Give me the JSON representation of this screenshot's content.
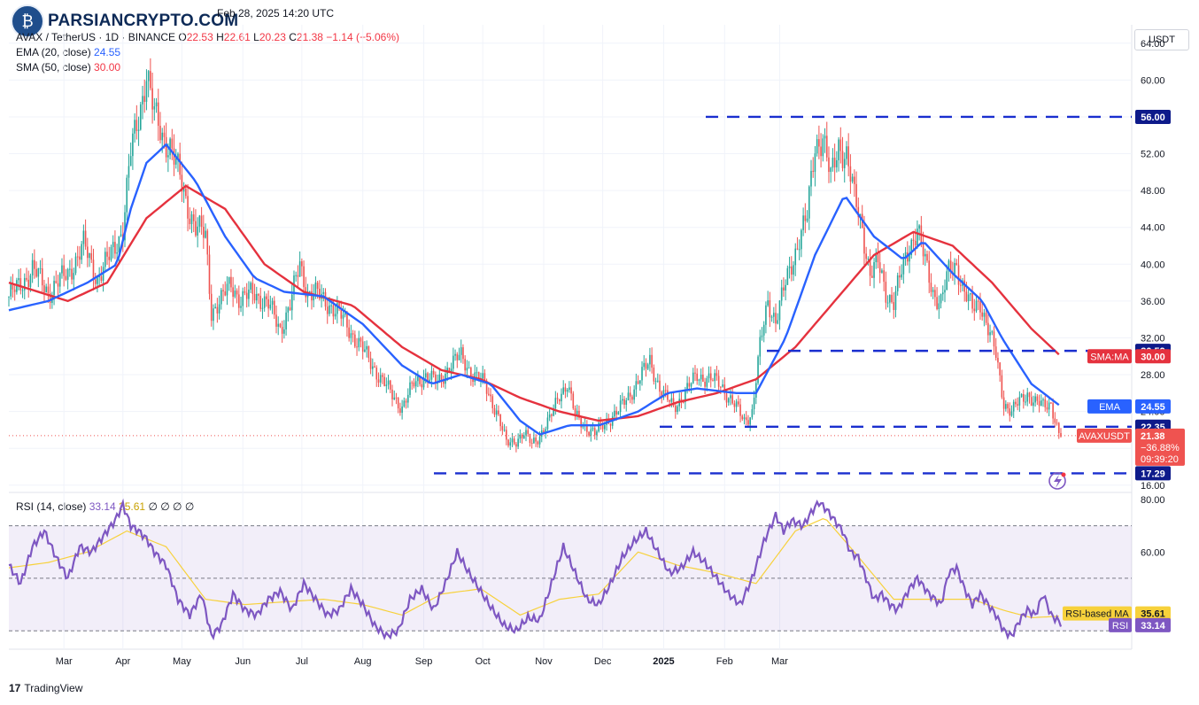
{
  "header": {
    "meta": "Feb 28, 2025 14:20 UTC",
    "symbol": "AVAX / TetherUS · 1D · BINANCE",
    "o_label": "O",
    "o": "22.53",
    "h_label": "H",
    "h": "22.61",
    "l_label": "L",
    "l": "20.23",
    "c_label": "C",
    "c": "21.38",
    "change": "−1.14 (−5.06%)",
    "ema_label": "EMA (20, close)",
    "ema_value": "24.55",
    "sma_label": "SMA (50, close)",
    "sma_value": "30.00",
    "rsi_label": "RSI (14, close)",
    "rsi_value": "33.14",
    "rsi_ma_value": "35.61",
    "rsi_extra": "∅ ∅ ∅ ∅"
  },
  "watermark": "PARSIANCRYPTO.COM",
  "currency": "USDT",
  "tradingview": "TradingView",
  "colors": {
    "up": "#26a69a",
    "down": "#ef5350",
    "ema": "#2962ff",
    "sma": "#e5323e",
    "rsi": "#7e57c2",
    "rsi_ma": "#f7d13b",
    "level": "#1a2fcf"
  },
  "chart_data": [
    {
      "type": "candlestick",
      "x_tick_labels": [
        "Mar",
        "Apr",
        "May",
        "Jun",
        "Jul",
        "Aug",
        "Sep",
        "Oct",
        "Nov",
        "Dec",
        "2025",
        "Feb",
        "Mar"
      ],
      "y_tick_labels": [
        "64.00",
        "60.00",
        "56.00",
        "52.00",
        "48.00",
        "44.00",
        "40.00",
        "36.00",
        "32.00",
        "28.00",
        "24.00",
        "20.00",
        "16.00"
      ],
      "ylim": [
        15.5,
        66
      ],
      "last_price_tag": {
        "symbol": "AVAXUSDT",
        "price": "21.38",
        "change": "−36.88%",
        "countdown": "09:39:20"
      },
      "indicator_tags": [
        {
          "name": "EMA",
          "value": "24.55"
        },
        {
          "name": "SMA:MA",
          "value": "30.00"
        }
      ],
      "levels": [
        {
          "price": 56.0,
          "label": "56.00"
        },
        {
          "price": 30.59,
          "label": "30.59"
        },
        {
          "price": 22.35,
          "label": "22.35"
        },
        {
          "price": 17.29,
          "label": "17.29"
        }
      ],
      "close_approx": [
        [
          0,
          36.5
        ],
        [
          5,
          37.5
        ],
        [
          12,
          39.5
        ],
        [
          20,
          37
        ],
        [
          30,
          39
        ],
        [
          38,
          42
        ],
        [
          45,
          38.5
        ],
        [
          52,
          41
        ],
        [
          58,
          44
        ],
        [
          62,
          52
        ],
        [
          66,
          56
        ],
        [
          70,
          61
        ],
        [
          74,
          56
        ],
        [
          78,
          54
        ],
        [
          82,
          53
        ],
        [
          86,
          50
        ],
        [
          90,
          47
        ],
        [
          95,
          44
        ],
        [
          100,
          43
        ],
        [
          103,
          35
        ],
        [
          108,
          36
        ],
        [
          113,
          38
        ],
        [
          118,
          36
        ],
        [
          125,
          37
        ],
        [
          132,
          35.5
        ],
        [
          138,
          33
        ],
        [
          143,
          35.5
        ],
        [
          148,
          40
        ],
        [
          152,
          37
        ],
        [
          158,
          36.5
        ],
        [
          164,
          35.5
        ],
        [
          170,
          34
        ],
        [
          176,
          32
        ],
        [
          182,
          30
        ],
        [
          188,
          28
        ],
        [
          194,
          26
        ],
        [
          200,
          24.5
        ],
        [
          206,
          27
        ],
        [
          212,
          28
        ],
        [
          218,
          27
        ],
        [
          224,
          29
        ],
        [
          230,
          30
        ],
        [
          236,
          28
        ],
        [
          242,
          27
        ],
        [
          248,
          24
        ],
        [
          253,
          20.5
        ],
        [
          258,
          21
        ],
        [
          262,
          21.5
        ],
        [
          266,
          20.5
        ],
        [
          270,
          21.5
        ],
        [
          275,
          23
        ],
        [
          280,
          26
        ],
        [
          284,
          27
        ],
        [
          288,
          23.5
        ],
        [
          293,
          22.5
        ],
        [
          298,
          21.5
        ],
        [
          304,
          23
        ],
        [
          310,
          24
        ],
        [
          316,
          26
        ],
        [
          322,
          28
        ],
        [
          326,
          29.5
        ],
        [
          332,
          26
        ],
        [
          338,
          24.5
        ],
        [
          344,
          26
        ],
        [
          350,
          28
        ],
        [
          356,
          27.5
        ],
        [
          362,
          27
        ],
        [
          368,
          25
        ],
        [
          374,
          23
        ],
        [
          378,
          24
        ],
        [
          382,
          31
        ],
        [
          386,
          36
        ],
        [
          390,
          34
        ],
        [
          394,
          37
        ],
        [
          398,
          40
        ],
        [
          402,
          43
        ],
        [
          406,
          45
        ],
        [
          410,
          53
        ],
        [
          414,
          54
        ],
        [
          418,
          49
        ],
        [
          422,
          53
        ],
        [
          426,
          52
        ],
        [
          430,
          47
        ],
        [
          434,
          44
        ],
        [
          438,
          39
        ],
        [
          442,
          40
        ],
        [
          446,
          37
        ],
        [
          450,
          36
        ],
        [
          454,
          39
        ],
        [
          458,
          42
        ],
        [
          462,
          44
        ],
        [
          466,
          40
        ],
        [
          470,
          37
        ],
        [
          474,
          36
        ],
        [
          478,
          39
        ],
        [
          482,
          40
        ],
        [
          486,
          37
        ],
        [
          490,
          35
        ],
        [
          494,
          36
        ],
        [
          498,
          33
        ],
        [
          502,
          30
        ],
        [
          506,
          25
        ],
        [
          510,
          24
        ],
        [
          514,
          25
        ],
        [
          518,
          26
        ],
        [
          522,
          25
        ],
        [
          526,
          24.5
        ],
        [
          530,
          25
        ],
        [
          534,
          21.5
        ]
      ],
      "ema_approx": [
        [
          0,
          35
        ],
        [
          20,
          36
        ],
        [
          40,
          38
        ],
        [
          55,
          40
        ],
        [
          62,
          46
        ],
        [
          70,
          51
        ],
        [
          80,
          53
        ],
        [
          95,
          49
        ],
        [
          110,
          43
        ],
        [
          125,
          38.5
        ],
        [
          140,
          37
        ],
        [
          160,
          36.5
        ],
        [
          180,
          33.5
        ],
        [
          200,
          29
        ],
        [
          215,
          27
        ],
        [
          230,
          28
        ],
        [
          245,
          27
        ],
        [
          260,
          23
        ],
        [
          270,
          21.5
        ],
        [
          285,
          22.5
        ],
        [
          300,
          22.5
        ],
        [
          320,
          24
        ],
        [
          335,
          26
        ],
        [
          350,
          26.5
        ],
        [
          370,
          26
        ],
        [
          380,
          26
        ],
        [
          395,
          32
        ],
        [
          410,
          41
        ],
        [
          425,
          47.5
        ],
        [
          440,
          43
        ],
        [
          455,
          40.5
        ],
        [
          465,
          42.5
        ],
        [
          480,
          39
        ],
        [
          495,
          36
        ],
        [
          505,
          32
        ],
        [
          520,
          27
        ],
        [
          535,
          24.55
        ]
      ],
      "sma_approx": [
        [
          0,
          38
        ],
        [
          30,
          36
        ],
        [
          50,
          38
        ],
        [
          70,
          45
        ],
        [
          90,
          48.5
        ],
        [
          110,
          46
        ],
        [
          130,
          40
        ],
        [
          150,
          37
        ],
        [
          175,
          35.5
        ],
        [
          200,
          31
        ],
        [
          220,
          28.5
        ],
        [
          240,
          27.5
        ],
        [
          260,
          25.5
        ],
        [
          280,
          24
        ],
        [
          300,
          23
        ],
        [
          320,
          23.5
        ],
        [
          340,
          25
        ],
        [
          360,
          26
        ],
        [
          380,
          27.5
        ],
        [
          400,
          31
        ],
        [
          420,
          36
        ],
        [
          440,
          41
        ],
        [
          460,
          43.5
        ],
        [
          480,
          42
        ],
        [
          500,
          38
        ],
        [
          520,
          33
        ],
        [
          535,
          30
        ]
      ]
    },
    {
      "type": "line",
      "name": "RSI",
      "y_tick_labels": [
        "80.00",
        "60.00"
      ],
      "ylim": [
        23,
        82
      ],
      "bands": [
        70,
        50,
        30
      ],
      "tags": [
        {
          "name": "RSI-based MA",
          "value": "35.61"
        },
        {
          "name": "RSI",
          "value": "33.14"
        }
      ],
      "rsi_approx": [
        [
          0,
          55
        ],
        [
          6,
          48
        ],
        [
          12,
          62
        ],
        [
          18,
          68
        ],
        [
          24,
          58
        ],
        [
          30,
          50
        ],
        [
          36,
          62
        ],
        [
          42,
          60
        ],
        [
          48,
          66
        ],
        [
          54,
          72
        ],
        [
          58,
          78
        ],
        [
          62,
          70
        ],
        [
          66,
          68
        ],
        [
          70,
          65
        ],
        [
          74,
          60
        ],
        [
          80,
          55
        ],
        [
          86,
          42
        ],
        [
          92,
          36
        ],
        [
          98,
          44
        ],
        [
          103,
          28
        ],
        [
          108,
          32
        ],
        [
          114,
          44
        ],
        [
          120,
          38
        ],
        [
          126,
          36
        ],
        [
          132,
          42
        ],
        [
          138,
          45
        ],
        [
          144,
          38
        ],
        [
          150,
          48
        ],
        [
          156,
          42
        ],
        [
          162,
          36
        ],
        [
          168,
          38
        ],
        [
          174,
          46
        ],
        [
          180,
          40
        ],
        [
          186,
          32
        ],
        [
          192,
          28
        ],
        [
          198,
          30
        ],
        [
          204,
          42
        ],
        [
          210,
          46
        ],
        [
          216,
          38
        ],
        [
          222,
          48
        ],
        [
          228,
          60
        ],
        [
          234,
          52
        ],
        [
          240,
          45
        ],
        [
          246,
          38
        ],
        [
          252,
          32
        ],
        [
          258,
          30
        ],
        [
          264,
          35
        ],
        [
          270,
          34
        ],
        [
          276,
          48
        ],
        [
          282,
          62
        ],
        [
          288,
          52
        ],
        [
          294,
          42
        ],
        [
          300,
          40
        ],
        [
          306,
          48
        ],
        [
          312,
          58
        ],
        [
          318,
          64
        ],
        [
          324,
          68
        ],
        [
          330,
          60
        ],
        [
          336,
          52
        ],
        [
          342,
          54
        ],
        [
          348,
          60
        ],
        [
          354,
          56
        ],
        [
          360,
          50
        ],
        [
          366,
          44
        ],
        [
          372,
          40
        ],
        [
          378,
          50
        ],
        [
          384,
          64
        ],
        [
          390,
          74
        ],
        [
          394,
          68
        ],
        [
          398,
          72
        ],
        [
          404,
          70
        ],
        [
          408,
          75
        ],
        [
          412,
          79
        ],
        [
          416,
          76
        ],
        [
          420,
          72
        ],
        [
          424,
          68
        ],
        [
          428,
          60
        ],
        [
          432,
          58
        ],
        [
          436,
          50
        ],
        [
          440,
          42
        ],
        [
          444,
          44
        ],
        [
          448,
          40
        ],
        [
          452,
          38
        ],
        [
          458,
          46
        ],
        [
          462,
          50
        ],
        [
          468,
          44
        ],
        [
          474,
          40
        ],
        [
          478,
          52
        ],
        [
          482,
          54
        ],
        [
          486,
          46
        ],
        [
          490,
          40
        ],
        [
          494,
          44
        ],
        [
          498,
          40
        ],
        [
          502,
          36
        ],
        [
          506,
          30
        ],
        [
          510,
          28
        ],
        [
          514,
          34
        ],
        [
          518,
          38
        ],
        [
          522,
          36
        ],
        [
          526,
          44
        ],
        [
          530,
          36
        ],
        [
          535,
          33
        ]
      ],
      "rsi_ma_approx": [
        [
          0,
          54
        ],
        [
          20,
          56
        ],
        [
          40,
          60
        ],
        [
          60,
          68
        ],
        [
          80,
          62
        ],
        [
          100,
          42
        ],
        [
          120,
          40
        ],
        [
          140,
          41
        ],
        [
          160,
          42
        ],
        [
          180,
          40
        ],
        [
          200,
          36
        ],
        [
          220,
          44
        ],
        [
          240,
          46
        ],
        [
          260,
          36
        ],
        [
          280,
          42
        ],
        [
          300,
          44
        ],
        [
          320,
          60
        ],
        [
          340,
          55
        ],
        [
          360,
          52
        ],
        [
          380,
          48
        ],
        [
          400,
          68
        ],
        [
          415,
          73
        ],
        [
          430,
          60
        ],
        [
          450,
          42
        ],
        [
          470,
          42
        ],
        [
          490,
          42
        ],
        [
          505,
          38
        ],
        [
          520,
          35
        ],
        [
          535,
          35.6
        ]
      ]
    }
  ]
}
